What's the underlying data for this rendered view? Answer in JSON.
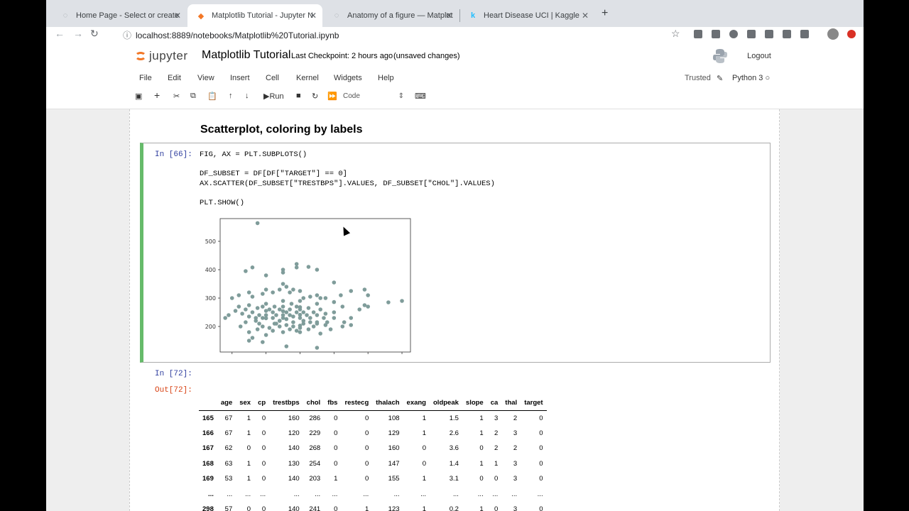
{
  "browser": {
    "tabs": [
      {
        "label": "Home Page - Select or create",
        "icon": "loading-icon",
        "active": false
      },
      {
        "label": "Matplotlib Tutorial - Jupyter N",
        "icon": "jupyter-favicon",
        "active": true
      },
      {
        "label": "Anatomy of a figure — Matplot",
        "icon": "loading-icon",
        "active": false
      },
      {
        "label": "Heart Disease UCI | Kaggle",
        "icon": "kaggle-favicon",
        "active": false
      }
    ],
    "url": "localhost:8889/notebooks/Matplotlib%20Tutorial.ipynb"
  },
  "jupyter": {
    "logo_text": "jupyter",
    "notebook_title": "Matplotlib Tutorial",
    "checkpoint": "Last Checkpoint: 2 hours ago",
    "unsaved": "(unsaved changes)",
    "logout": "Logout",
    "menu": [
      "File",
      "Edit",
      "View",
      "Insert",
      "Cell",
      "Kernel",
      "Widgets",
      "Help"
    ],
    "trusted": "Trusted",
    "kernel": "Python 3",
    "toolbar": {
      "run": "Run",
      "cell_type": "Code"
    }
  },
  "notebook": {
    "heading": "Scatterplot, coloring by labels",
    "cell66": {
      "prompt": "In [66]:",
      "code": [
        "FIG, AX = PLT.SUBPLOTS()",
        "DF_SUBSET = DF[DF[\"TARGET\"] == 0]",
        "AX.SCATTER(DF_SUBSET[\"TRESTBPS\"].VALUES, DF_SUBSET[\"CHOL\"].VALUES)",
        "PLT.SHOW()"
      ]
    },
    "cell72": {
      "in_prompt": "In [72]:",
      "out_prompt": "Out[72]:",
      "columns": [
        "",
        "age",
        "sex",
        "cp",
        "trestbps",
        "chol",
        "fbs",
        "restecg",
        "thalach",
        "exang",
        "oldpeak",
        "slope",
        "ca",
        "thal",
        "target"
      ],
      "rows": [
        [
          "165",
          "67",
          "1",
          "0",
          "160",
          "286",
          "0",
          "0",
          "108",
          "1",
          "1.5",
          "1",
          "3",
          "2",
          "0"
        ],
        [
          "166",
          "67",
          "1",
          "0",
          "120",
          "229",
          "0",
          "0",
          "129",
          "1",
          "2.6",
          "1",
          "2",
          "3",
          "0"
        ],
        [
          "167",
          "62",
          "0",
          "0",
          "140",
          "268",
          "0",
          "0",
          "160",
          "0",
          "3.6",
          "0",
          "2",
          "2",
          "0"
        ],
        [
          "168",
          "63",
          "1",
          "0",
          "130",
          "254",
          "0",
          "0",
          "147",
          "0",
          "1.4",
          "1",
          "1",
          "3",
          "0"
        ],
        [
          "169",
          "53",
          "1",
          "0",
          "140",
          "203",
          "1",
          "0",
          "155",
          "1",
          "3.1",
          "0",
          "0",
          "3",
          "0"
        ],
        [
          "...",
          "...",
          "...",
          "...",
          "...",
          "...",
          "...",
          "...",
          "...",
          "...",
          "...",
          "...",
          "...",
          "...",
          "..."
        ],
        [
          "298",
          "57",
          "0",
          "0",
          "140",
          "241",
          "0",
          "1",
          "123",
          "1",
          "0.2",
          "1",
          "0",
          "3",
          "0"
        ]
      ]
    }
  },
  "chart_data": {
    "type": "scatter",
    "title": "",
    "xlabel": "",
    "ylabel": "",
    "xlim": [
      93,
      205
    ],
    "ylim": [
      110,
      580
    ],
    "xticks": [
      100,
      120,
      140,
      160,
      180,
      200
    ],
    "yticks": [
      200,
      300,
      400,
      500
    ],
    "color": "#7f9c9a",
    "points": [
      [
        115,
        564
      ],
      [
        112,
        408
      ],
      [
        130,
        400
      ],
      [
        138,
        420
      ],
      [
        138,
        408
      ],
      [
        145,
        410
      ],
      [
        150,
        400
      ],
      [
        120,
        380
      ],
      [
        130,
        390
      ],
      [
        108,
        395
      ],
      [
        100,
        300
      ],
      [
        104,
        310
      ],
      [
        110,
        320
      ],
      [
        112,
        305
      ],
      [
        118,
        315
      ],
      [
        120,
        330
      ],
      [
        124,
        320
      ],
      [
        128,
        330
      ],
      [
        130,
        350
      ],
      [
        132,
        340
      ],
      [
        134,
        320
      ],
      [
        136,
        330
      ],
      [
        140,
        325
      ],
      [
        142,
        300
      ],
      [
        146,
        305
      ],
      [
        150,
        310
      ],
      [
        152,
        300
      ],
      [
        155,
        300
      ],
      [
        160,
        355
      ],
      [
        164,
        310
      ],
      [
        170,
        325
      ],
      [
        178,
        330
      ],
      [
        180,
        310
      ],
      [
        192,
        285
      ],
      [
        200,
        290
      ],
      [
        96,
        230
      ],
      [
        98,
        240
      ],
      [
        102,
        255
      ],
      [
        104,
        270
      ],
      [
        106,
        245
      ],
      [
        108,
        260
      ],
      [
        110,
        235
      ],
      [
        110,
        275
      ],
      [
        112,
        250
      ],
      [
        114,
        220
      ],
      [
        115,
        265
      ],
      [
        116,
        240
      ],
      [
        118,
        230
      ],
      [
        118,
        270
      ],
      [
        120,
        255
      ],
      [
        120,
        240
      ],
      [
        120,
        229
      ],
      [
        120,
        280
      ],
      [
        122,
        260
      ],
      [
        124,
        230
      ],
      [
        124,
        250
      ],
      [
        125,
        270
      ],
      [
        126,
        240
      ],
      [
        128,
        260
      ],
      [
        128,
        220
      ],
      [
        130,
        254
      ],
      [
        130,
        240
      ],
      [
        130,
        270
      ],
      [
        130,
        230
      ],
      [
        130,
        290
      ],
      [
        132,
        250
      ],
      [
        132,
        226
      ],
      [
        134,
        260
      ],
      [
        134,
        240
      ],
      [
        135,
        280
      ],
      [
        136,
        235
      ],
      [
        138,
        250
      ],
      [
        138,
        270
      ],
      [
        140,
        268
      ],
      [
        140,
        241
      ],
      [
        140,
        203
      ],
      [
        140,
        230
      ],
      [
        140,
        260
      ],
      [
        140,
        290
      ],
      [
        142,
        250
      ],
      [
        142,
        220
      ],
      [
        144,
        240
      ],
      [
        145,
        265
      ],
      [
        146,
        230
      ],
      [
        148,
        250
      ],
      [
        150,
        240
      ],
      [
        150,
        280
      ],
      [
        150,
        210
      ],
      [
        152,
        260
      ],
      [
        154,
        230
      ],
      [
        155,
        245
      ],
      [
        160,
        286
      ],
      [
        160,
        250
      ],
      [
        160,
        230
      ],
      [
        165,
        270
      ],
      [
        170,
        230
      ],
      [
        175,
        260
      ],
      [
        178,
        275
      ],
      [
        180,
        270
      ],
      [
        105,
        200
      ],
      [
        110,
        180
      ],
      [
        110,
        150
      ],
      [
        115,
        190
      ],
      [
        118,
        200
      ],
      [
        120,
        170
      ],
      [
        122,
        195
      ],
      [
        124,
        185
      ],
      [
        125,
        210
      ],
      [
        128,
        200
      ],
      [
        130,
        180
      ],
      [
        132,
        205
      ],
      [
        134,
        190
      ],
      [
        136,
        200
      ],
      [
        138,
        185
      ],
      [
        140,
        195
      ],
      [
        140,
        180
      ],
      [
        142,
        210
      ],
      [
        145,
        190
      ],
      [
        148,
        200
      ],
      [
        150,
        215
      ],
      [
        152,
        175
      ],
      [
        155,
        205
      ],
      [
        158,
        190
      ],
      [
        165,
        200
      ],
      [
        170,
        205
      ],
      [
        112,
        160
      ],
      [
        118,
        145
      ],
      [
        132,
        130
      ],
      [
        150,
        125
      ],
      [
        128,
        220
      ],
      [
        116,
        210
      ],
      [
        126,
        210
      ],
      [
        136,
        215
      ],
      [
        146,
        215
      ],
      [
        156,
        215
      ],
      [
        166,
        215
      ],
      [
        108,
        215
      ],
      [
        114,
        230
      ]
    ]
  }
}
